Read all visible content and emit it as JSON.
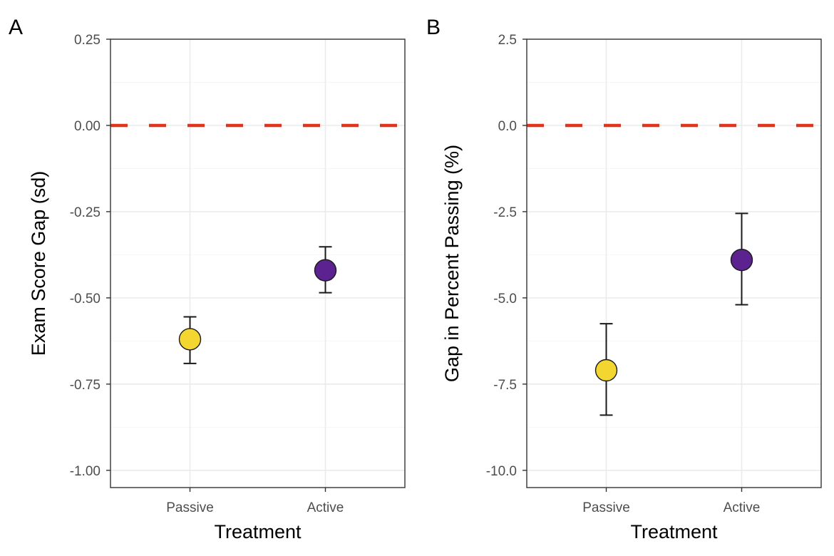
{
  "chart_data": [
    {
      "type": "scatter",
      "panel_tag": "A",
      "xlabel": "Treatment",
      "ylabel": "Exam Score Gap (sd)",
      "categories": [
        "Passive",
        "Active"
      ],
      "ylim": [
        -1.05,
        0.25
      ],
      "yticks": [
        0.25,
        0.0,
        -0.25,
        -0.5,
        -0.75,
        -1.0
      ],
      "ytick_labels": [
        "0.25",
        "0.00",
        "-0.25",
        "-0.50",
        "-0.75",
        "-1.00"
      ],
      "reference_line": 0.0,
      "reference_line_color": "#e0341c",
      "grid": true,
      "points": [
        {
          "category": "Passive",
          "value": -0.62,
          "lower": -0.69,
          "upper": -0.555,
          "color": "#f4d631"
        },
        {
          "category": "Active",
          "value": -0.42,
          "lower": -0.485,
          "upper": -0.352,
          "color": "#5c2390"
        }
      ]
    },
    {
      "type": "scatter",
      "panel_tag": "B",
      "xlabel": "Treatment",
      "ylabel": "Gap in Percent Passing (%)",
      "categories": [
        "Passive",
        "Active"
      ],
      "ylim": [
        -10.5,
        2.5
      ],
      "yticks": [
        2.5,
        0.0,
        -2.5,
        -5.0,
        -7.5,
        -10.0
      ],
      "ytick_labels": [
        "2.5",
        "0.0",
        "-2.5",
        "-5.0",
        "-7.5",
        "-10.0"
      ],
      "reference_line": 0.0,
      "reference_line_color": "#e0341c",
      "grid": true,
      "points": [
        {
          "category": "Passive",
          "value": -7.1,
          "lower": -8.4,
          "upper": -5.75,
          "color": "#f4d631"
        },
        {
          "category": "Active",
          "value": -3.9,
          "lower": -5.2,
          "upper": -2.55,
          "color": "#5c2390"
        }
      ]
    }
  ]
}
